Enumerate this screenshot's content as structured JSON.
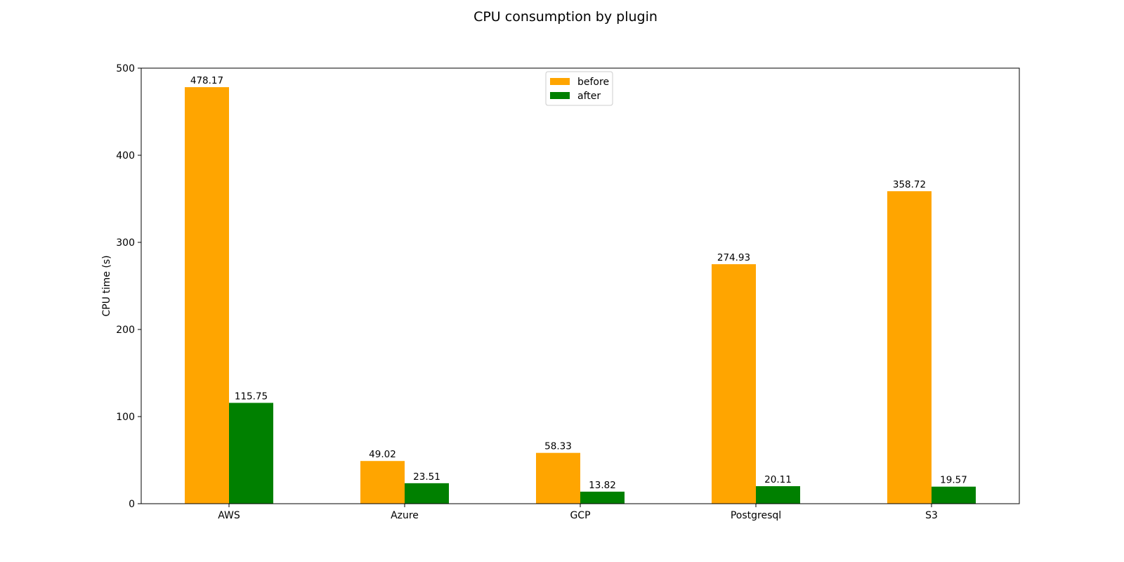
{
  "chart_data": {
    "type": "bar",
    "title": "CPU consumption by plugin",
    "xlabel": "",
    "ylabel": "CPU time (s)",
    "categories": [
      "AWS",
      "Azure",
      "GCP",
      "Postgresql",
      "S3"
    ],
    "ylim": [
      0,
      500
    ],
    "yticks": [
      0,
      100,
      200,
      300,
      400,
      500
    ],
    "grid": false,
    "legend_position": "top-center",
    "series": [
      {
        "name": "before",
        "color": "#ffa500",
        "values": [
          478.17,
          49.02,
          58.33,
          274.93,
          358.72
        ],
        "labels": [
          "478.17",
          "49.02",
          "58.33",
          "274.93",
          "358.72"
        ]
      },
      {
        "name": "after",
        "color": "#008000",
        "values": [
          115.75,
          23.51,
          13.82,
          20.11,
          19.57
        ],
        "labels": [
          "115.75",
          "23.51",
          "13.82",
          "20.11",
          "19.57"
        ]
      }
    ]
  }
}
